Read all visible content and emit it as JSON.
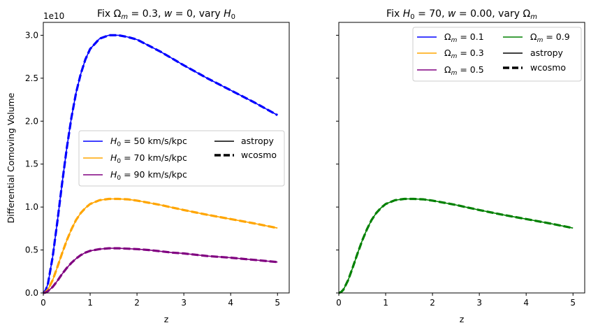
{
  "chart_data": [
    {
      "type": "line",
      "title": "Fix Ωm = 0.3, w = 0, vary H0",
      "xlabel": "z",
      "ylabel": "Differential Comoving Volume",
      "y_offset_label": "1e10",
      "xlim": [
        0,
        5.25
      ],
      "ylim": [
        0,
        3.15
      ],
      "x_ticks": [
        "0",
        "1",
        "2",
        "3",
        "4",
        "5"
      ],
      "y_ticks": [
        "0.0",
        "0.5",
        "1.0",
        "1.5",
        "2.0",
        "2.5",
        "3.0"
      ],
      "legend_position": "center-right",
      "legend_entries": [
        {
          "label": "H0 = 50 km/s/kpc",
          "color": "#0000ff",
          "style": "solid"
        },
        {
          "label": "H0 = 70 km/s/kpc",
          "color": "#ffa500",
          "style": "solid"
        },
        {
          "label": "H0 = 90 km/s/kpc",
          "color": "#800080",
          "style": "solid"
        },
        {
          "label": "astropy",
          "color": "#000000",
          "style": "solid"
        },
        {
          "label": "wcosmo",
          "color": "#000000",
          "style": "dashed"
        }
      ],
      "x": [
        0,
        0.05,
        0.1,
        0.2,
        0.3,
        0.4,
        0.5,
        0.6,
        0.7,
        0.8,
        0.9,
        1.0,
        1.2,
        1.4,
        1.6,
        1.8,
        2.0,
        2.25,
        2.5,
        2.75,
        3.0,
        3.5,
        4.0,
        4.5,
        5.0
      ],
      "series": [
        {
          "color": "#0000ff",
          "values": [
            0,
            0.03,
            0.11,
            0.42,
            0.83,
            1.27,
            1.68,
            2.04,
            2.33,
            2.55,
            2.72,
            2.84,
            2.96,
            3.0,
            3.0,
            2.98,
            2.95,
            2.88,
            2.81,
            2.73,
            2.65,
            2.5,
            2.36,
            2.22,
            2.07
          ]
        },
        {
          "color": "#ffa500",
          "values": [
            0,
            0.011,
            0.04,
            0.15,
            0.3,
            0.46,
            0.61,
            0.74,
            0.85,
            0.93,
            0.99,
            1.035,
            1.08,
            1.095,
            1.095,
            1.09,
            1.075,
            1.05,
            1.025,
            0.995,
            0.965,
            0.91,
            0.86,
            0.81,
            0.755
          ]
        },
        {
          "color": "#800080",
          "values": [
            0,
            0.005,
            0.02,
            0.07,
            0.14,
            0.22,
            0.29,
            0.35,
            0.4,
            0.44,
            0.47,
            0.49,
            0.51,
            0.52,
            0.52,
            0.515,
            0.51,
            0.5,
            0.485,
            0.47,
            0.46,
            0.43,
            0.41,
            0.385,
            0.36
          ]
        }
      ]
    },
    {
      "type": "line",
      "title": "Fix H0 = 70, w = 0.00, vary Ωm",
      "xlabel": "z",
      "ylabel": "",
      "xlim": [
        0,
        5.25
      ],
      "ylim": [
        0,
        3.15
      ],
      "x_ticks": [
        "0",
        "1",
        "2",
        "3",
        "4",
        "5"
      ],
      "legend_position": "top-right",
      "legend_entries": [
        {
          "label": "Ωm = 0.1",
          "color": "#0000ff",
          "style": "solid"
        },
        {
          "label": "Ωm = 0.3",
          "color": "#ffa500",
          "style": "solid"
        },
        {
          "label": "Ωm = 0.5",
          "color": "#800080",
          "style": "solid"
        },
        {
          "label": "Ωm = 0.9",
          "color": "#008000",
          "style": "solid"
        },
        {
          "label": "astropy",
          "color": "#000000",
          "style": "solid"
        },
        {
          "label": "wcosmo",
          "color": "#000000",
          "style": "dashed"
        }
      ],
      "x": [
        0,
        0.05,
        0.1,
        0.2,
        0.3,
        0.4,
        0.5,
        0.6,
        0.7,
        0.8,
        0.9,
        1.0,
        1.2,
        1.4,
        1.6,
        1.8,
        2.0,
        2.25,
        2.5,
        2.75,
        3.0,
        3.5,
        4.0,
        4.5,
        5.0
      ],
      "series": [
        {
          "color": "#008000",
          "values": [
            0,
            0.011,
            0.04,
            0.15,
            0.3,
            0.46,
            0.61,
            0.74,
            0.85,
            0.93,
            0.99,
            1.035,
            1.08,
            1.095,
            1.095,
            1.09,
            1.075,
            1.05,
            1.025,
            0.995,
            0.965,
            0.91,
            0.86,
            0.81,
            0.755
          ]
        }
      ]
    }
  ],
  "legend1": {
    "h50_prefix": "H",
    "h50_sub": "0",
    "h50_rest": " = 50 km/s/kpc",
    "h70_prefix": "H",
    "h70_sub": "0",
    "h70_rest": " = 70 km/s/kpc",
    "h90_prefix": "H",
    "h90_sub": "0",
    "h90_rest": " = 90 km/s/kpc",
    "astropy": "astropy",
    "wcosmo": "wcosmo"
  },
  "legend2": {
    "om_prefix": "Ω",
    "om_sub": "m",
    "om01": " = 0.1",
    "om03": " = 0.3",
    "om05": " = 0.5",
    "om09": " = 0.9",
    "astropy": "astropy",
    "wcosmo": "wcosmo"
  },
  "titles": {
    "left_a": "Fix Ω",
    "left_sub_m": "m",
    "left_b": " = 0.3, ",
    "left_w": "w",
    "left_c": " = 0, vary ",
    "left_h": "H",
    "left_sub_0": "0",
    "right_a": "Fix ",
    "right_h": "H",
    "right_sub_0": "0",
    "right_b": " = 70, ",
    "right_w": "w",
    "right_c": " = 0.00, vary Ω",
    "right_sub_m": "m"
  }
}
